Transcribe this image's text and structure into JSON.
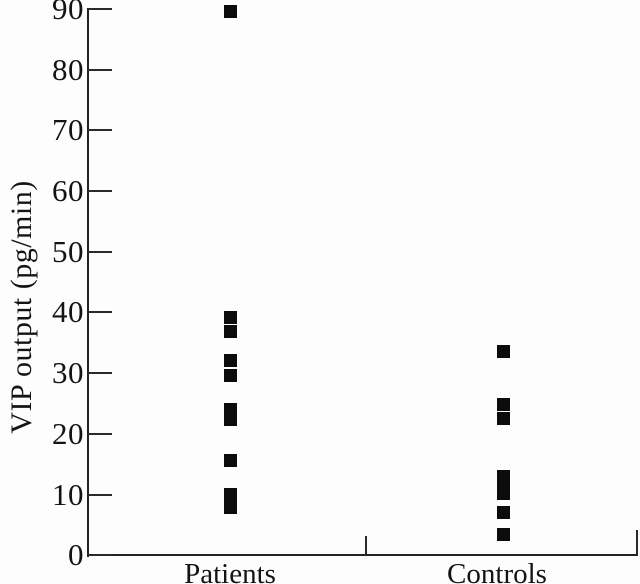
{
  "figure": {
    "background_color": "#fdfdfd",
    "marker_color": "#0c0c0c",
    "axis_color": "#232323",
    "text_color": "#141414"
  },
  "chart_data": {
    "type": "scatter",
    "title": "",
    "ylabel": "VIP output (pg/min)",
    "xlabel": "",
    "categories": [
      "Patients",
      "Controls"
    ],
    "series": [
      {
        "name": "Patients",
        "values": [
          89.5,
          39.2,
          36.8,
          32.0,
          29.6,
          24.0,
          22.4,
          15.6,
          10.0,
          7.9
        ]
      },
      {
        "name": "Controls",
        "values": [
          33.6,
          24.9,
          22.5,
          13.0,
          11.6,
          10.1,
          7.0,
          3.5
        ]
      }
    ],
    "ylim": [
      0,
      90
    ],
    "yticks": [
      0,
      10,
      20,
      30,
      40,
      50,
      60,
      70,
      80,
      90
    ],
    "marker": "filled-square",
    "legend": "none",
    "grid": false
  }
}
